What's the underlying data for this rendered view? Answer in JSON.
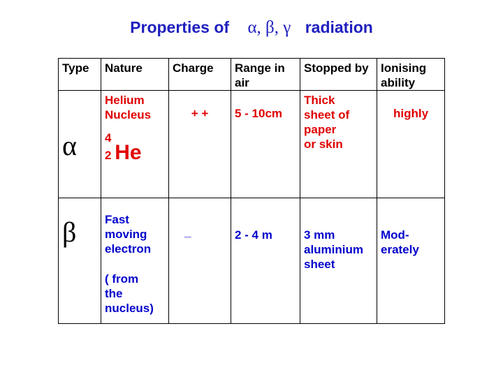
{
  "title": {
    "prefix": "Properties of",
    "greek": "α, β, γ",
    "suffix": "radiation"
  },
  "headers": {
    "type": "Type",
    "nature": "Nature",
    "charge": "Charge",
    "range": "Range in air",
    "stopped": "Stopped by",
    "ionising": "Ionising ability"
  },
  "rows": [
    {
      "type": "α",
      "nature_line1": "Helium",
      "nature_line2": "Nucleus",
      "he_mass": "4",
      "he_atomic": "2",
      "he_symbol": "He",
      "charge": "+ +",
      "range": "5 - 10cm",
      "stopped_line1": "Thick",
      "stopped_line2": "sheet of",
      "stopped_line3": "paper",
      "stopped_line4": "or  skin",
      "ionising": "highly"
    },
    {
      "type": "β",
      "nature_line1": "Fast",
      "nature_line2": "moving",
      "nature_line3": "electron",
      "nature_line4": "( from",
      "nature_line5": "the",
      "nature_line6": "nucleus)",
      "charge": "_",
      "range": "2 -  4 m",
      "stopped_line1": "3 mm",
      "stopped_line2": "aluminium",
      "stopped_line3": "sheet",
      "ionising_line1": "Mod-",
      "ionising_line2": "erately"
    }
  ]
}
